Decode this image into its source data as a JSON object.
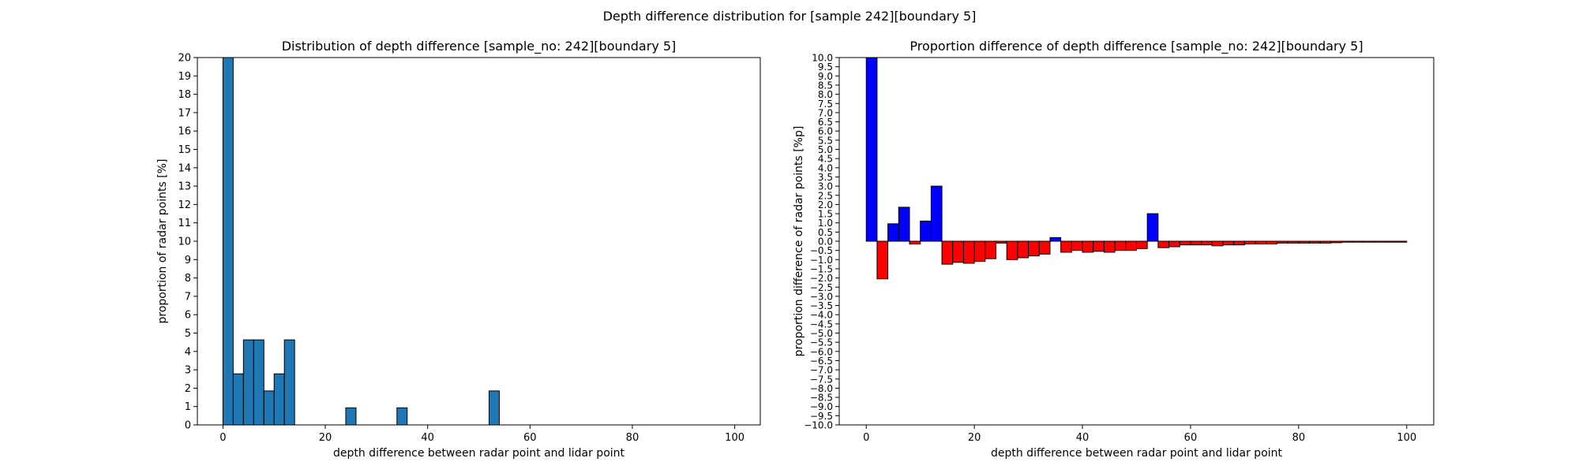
{
  "figure_title": "Depth difference distribution for [sample 242][boundary 5]",
  "colors": {
    "hist": "#1f77b4",
    "pos": "#0000ff",
    "neg": "#ff0000",
    "edge": "#000000"
  },
  "chart_data": [
    {
      "type": "bar",
      "title": "Distribution of depth difference [sample_no: 242][boundary 5]",
      "xlabel": "depth difference between radar point and lidar point",
      "ylabel": "proportion of radar points [%]",
      "xlim": [
        -5,
        105
      ],
      "ylim": [
        0,
        20
      ],
      "bin_width": 2.0,
      "x_ticks": [
        0,
        20,
        40,
        60,
        80,
        100
      ],
      "x_tick_labels": [
        "0",
        "20",
        "40",
        "60",
        "80",
        "100"
      ],
      "y_ticks": [
        0,
        1,
        2,
        3,
        4,
        5,
        6,
        7,
        8,
        9,
        10,
        11,
        12,
        13,
        14,
        15,
        16,
        17,
        18,
        19,
        20
      ],
      "y_tick_labels": [
        "0",
        "1",
        "2",
        "3",
        "4",
        "5",
        "6",
        "7",
        "8",
        "9",
        "10",
        "11",
        "12",
        "13",
        "14",
        "15",
        "16",
        "17",
        "18",
        "19",
        "20"
      ],
      "bin_starts": [
        0,
        2,
        4,
        6,
        8,
        10,
        12,
        24,
        34,
        52
      ],
      "values": [
        20.0,
        2.78,
        4.63,
        4.63,
        1.85,
        2.78,
        4.63,
        0.93,
        0.93,
        1.85
      ]
    },
    {
      "type": "bar",
      "title": "Proportion difference of depth difference [sample_no: 242][boundary 5]",
      "xlabel": "depth difference between radar point and lidar point",
      "ylabel": "proportion difference of radar points [%p]",
      "xlim": [
        -5,
        105
      ],
      "ylim": [
        -10,
        10
      ],
      "bin_width": 2.0,
      "x_ticks": [
        0,
        20,
        40,
        60,
        80,
        100
      ],
      "x_tick_labels": [
        "0",
        "20",
        "40",
        "60",
        "80",
        "100"
      ],
      "y_ticks": [
        10,
        9.5,
        9,
        8.5,
        8,
        7.5,
        7,
        6.5,
        6,
        5.5,
        5,
        4.5,
        4,
        3.5,
        3,
        2.5,
        2,
        1.5,
        1,
        0.5,
        0,
        -0.5,
        -1,
        -1.5,
        -2,
        -2.5,
        -3,
        -3.5,
        -4,
        -4.5,
        -5,
        -5.5,
        -6,
        -6.5,
        -7,
        -7.5,
        -8,
        -8.5,
        -9,
        -9.5,
        -10
      ],
      "y_tick_labels": [
        "10.0",
        "9.5",
        "9.0",
        "8.5",
        "8.0",
        "7.5",
        "7.0",
        "6.5",
        "6.0",
        "5.5",
        "5.0",
        "4.5",
        "4.0",
        "3.5",
        "3.0",
        "2.5",
        "2.0",
        "1.5",
        "1.0",
        "0.5",
        "0.0",
        "−0.5",
        "−1.0",
        "−1.5",
        "−2.0",
        "−2.5",
        "−3.0",
        "−3.5",
        "−4.0",
        "−4.5",
        "−5.0",
        "−5.5",
        "−6.0",
        "−6.5",
        "−7.0",
        "−7.5",
        "−8.0",
        "−8.5",
        "−9.0",
        "−9.5",
        "−10.0"
      ],
      "bin_starts": [
        0,
        2,
        4,
        6,
        8,
        10,
        12,
        14,
        16,
        18,
        20,
        22,
        24,
        26,
        28,
        30,
        32,
        34,
        36,
        38,
        40,
        42,
        44,
        46,
        48,
        50,
        52,
        54,
        56,
        58,
        60,
        62,
        64,
        66,
        68,
        70,
        72,
        74,
        76,
        78,
        80,
        82,
        84,
        86,
        88,
        90,
        92,
        94,
        96,
        98
      ],
      "values": [
        10.0,
        -2.05,
        0.95,
        1.85,
        -0.15,
        1.1,
        3.0,
        -1.25,
        -1.15,
        -1.2,
        -1.1,
        -0.95,
        -0.1,
        -1.0,
        -0.9,
        -0.8,
        -0.7,
        0.2,
        -0.6,
        -0.5,
        -0.6,
        -0.55,
        -0.6,
        -0.5,
        -0.5,
        -0.4,
        1.5,
        -0.35,
        -0.3,
        -0.2,
        -0.2,
        -0.2,
        -0.25,
        -0.2,
        -0.2,
        -0.15,
        -0.15,
        -0.15,
        -0.1,
        -0.1,
        -0.1,
        -0.1,
        -0.1,
        -0.08,
        -0.05,
        -0.05,
        -0.05,
        -0.05,
        -0.05,
        -0.05
      ]
    }
  ]
}
